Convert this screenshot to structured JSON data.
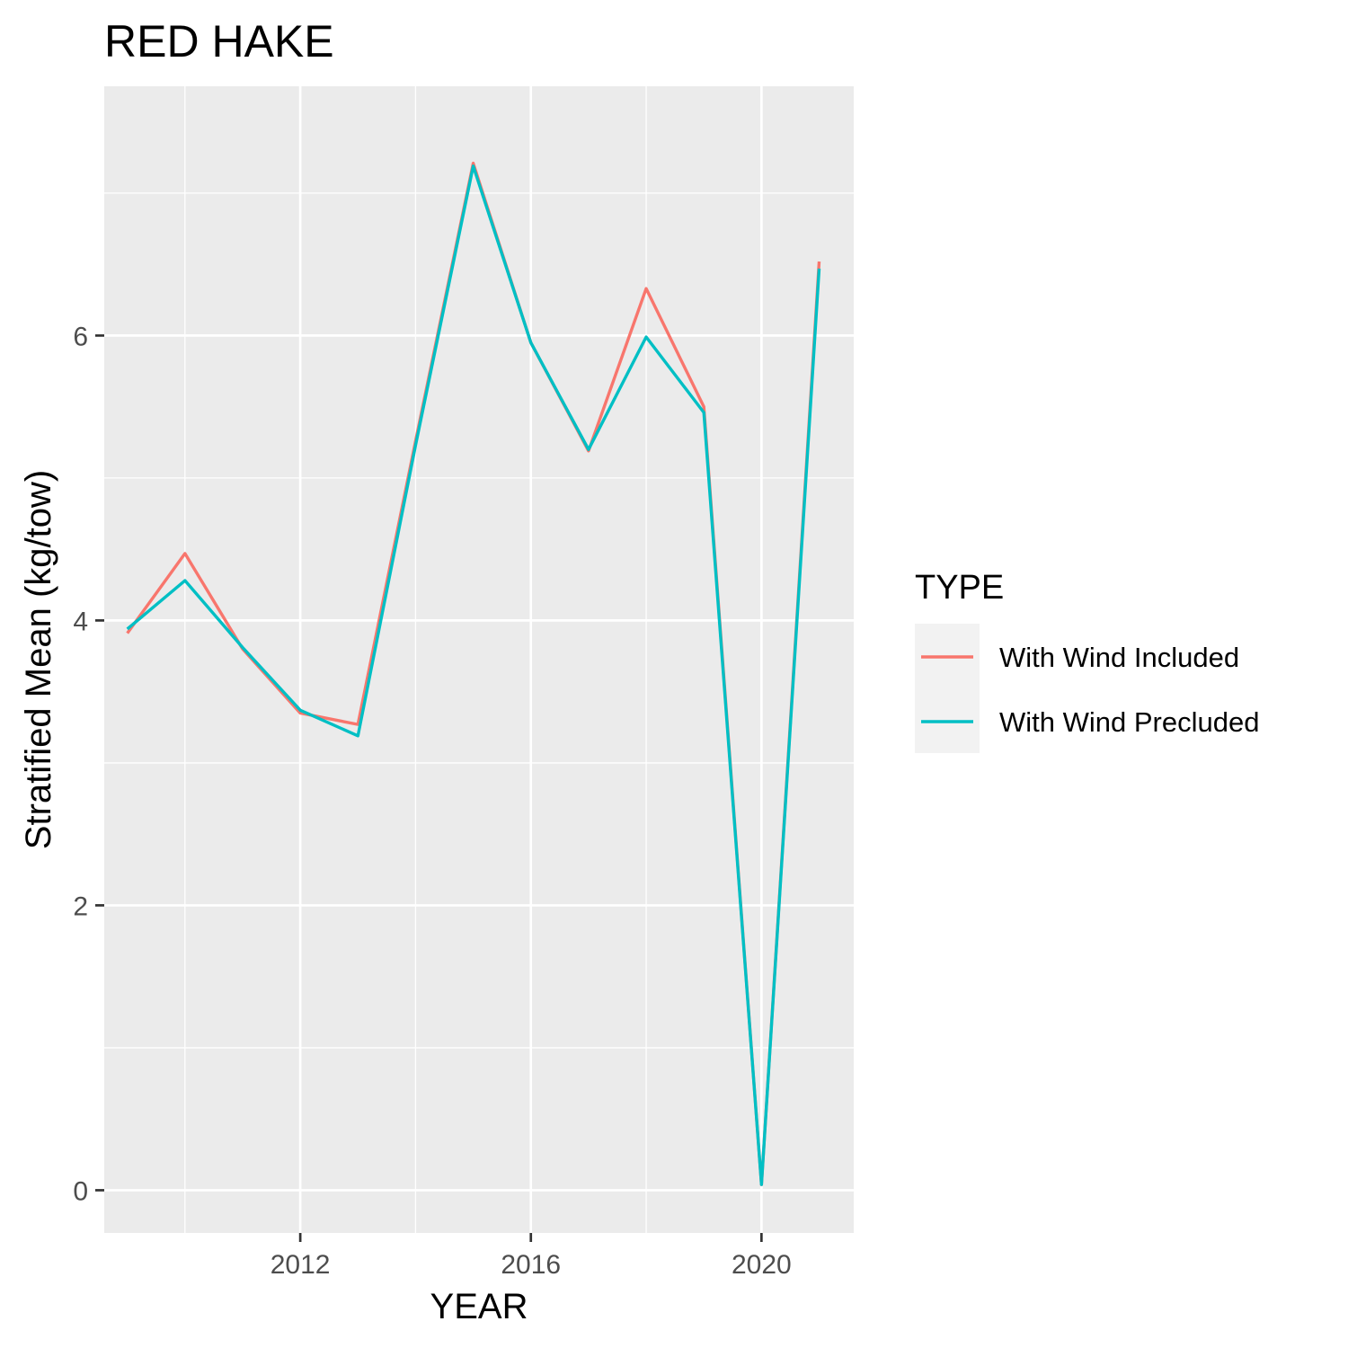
{
  "chart_data": {
    "type": "line",
    "title": "RED HAKE",
    "xlabel": "YEAR",
    "ylabel": "Stratified Mean (kg/tow)",
    "x": [
      2009,
      2010,
      2011,
      2012,
      2013,
      2014,
      2015,
      2016,
      2017,
      2018,
      2019,
      2020,
      2021
    ],
    "xlim": [
      2008.6,
      2021.6
    ],
    "ylim": [
      -0.3,
      7.75
    ],
    "x_ticks": [
      2012,
      2016,
      2020
    ],
    "x_minor_ticks": [
      2010,
      2014,
      2018
    ],
    "y_ticks": [
      0,
      2,
      4,
      6
    ],
    "y_minor_ticks": [
      1,
      3,
      5,
      7
    ],
    "grid": true,
    "legend": {
      "title": "TYPE",
      "position": "right"
    },
    "series": [
      {
        "name": "With Wind Included",
        "color": "#F8766D",
        "values": [
          3.91,
          4.47,
          3.8,
          3.35,
          3.27,
          5.26,
          7.21,
          5.95,
          5.19,
          6.33,
          5.5,
          0.04,
          6.52
        ]
      },
      {
        "name": "With Wind Precluded",
        "color": "#00BFC4",
        "values": [
          3.94,
          4.28,
          3.81,
          3.37,
          3.19,
          5.23,
          7.19,
          5.95,
          5.2,
          5.99,
          5.46,
          0.04,
          6.47
        ]
      }
    ]
  }
}
